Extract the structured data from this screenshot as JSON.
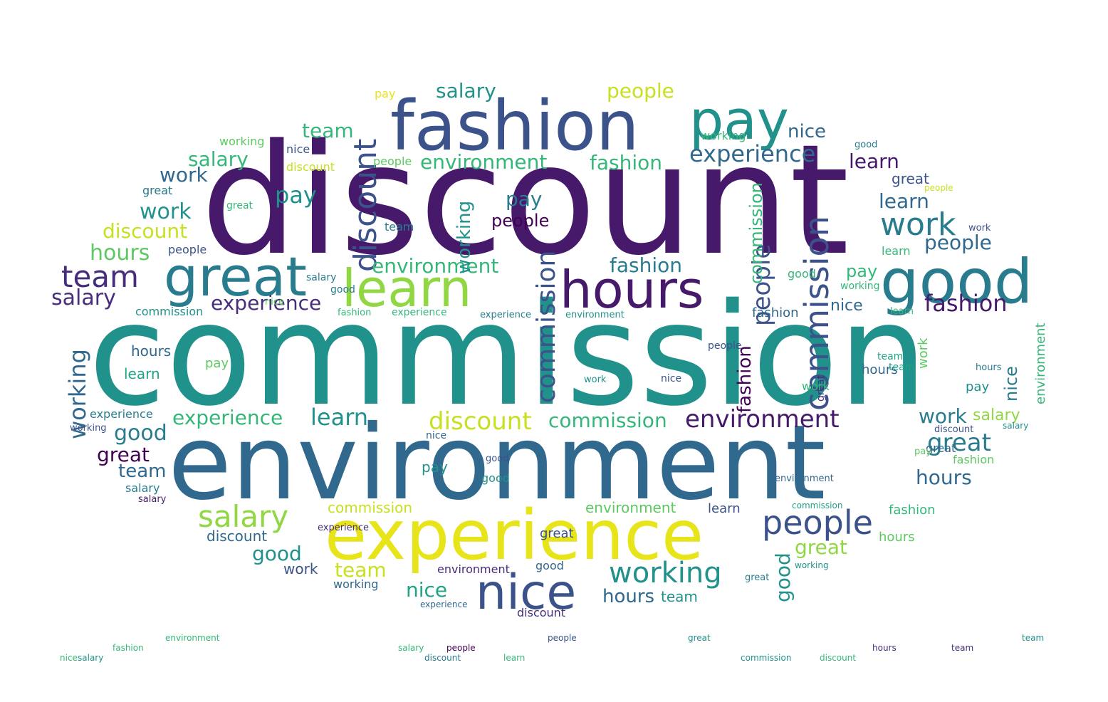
{
  "colors": {
    "background": "#ffffff",
    "palette": {
      "v1": "#440154",
      "v2": "#46196b",
      "v3": "#472d7b",
      "v4": "#3b528b",
      "v5": "#31688e",
      "v6": "#287c8e",
      "v7": "#21918c",
      "v8": "#20a486",
      "v9": "#35b779",
      "v10": "#5ec962",
      "v11": "#90d743",
      "v12": "#c8e020",
      "v13": "#e7e419"
    }
  },
  "words": [
    {
      "text": "discount",
      "color": "v2"
    },
    {
      "text": "commission",
      "color": "v7"
    },
    {
      "text": "environment",
      "color": "v5"
    },
    {
      "text": "experience",
      "color": "v13"
    },
    {
      "text": "fashion",
      "color": "v4"
    },
    {
      "text": "pay",
      "color": "v7"
    },
    {
      "text": "great",
      "color": "v6"
    },
    {
      "text": "learn",
      "color": "v11"
    },
    {
      "text": "hours",
      "color": "v2"
    },
    {
      "text": "good",
      "color": "v6"
    },
    {
      "text": "nice",
      "color": "v4"
    },
    {
      "text": "people",
      "color": "v4"
    },
    {
      "text": "working",
      "color": "v7"
    },
    {
      "text": "salary",
      "color": "v11"
    },
    {
      "text": "discount",
      "color": "v4"
    },
    {
      "text": "commission",
      "color": "v4"
    },
    {
      "text": "commission",
      "color": "v4"
    },
    {
      "text": "people",
      "color": "v4"
    },
    {
      "text": "team",
      "color": "v3"
    },
    {
      "text": "work",
      "color": "v6"
    },
    {
      "text": "fashion",
      "color": "v2"
    },
    {
      "text": "experience",
      "color": "v5"
    },
    {
      "text": "environment",
      "color": "v2"
    },
    {
      "text": "environment",
      "color": "v9"
    },
    {
      "text": "environment",
      "color": "v9"
    },
    {
      "text": "salary",
      "color": "v7"
    },
    {
      "text": "people",
      "color": "v12"
    },
    {
      "text": "fashion",
      "color": "v9"
    },
    {
      "text": "fashion",
      "color": "v6"
    },
    {
      "text": "team",
      "color": "v9"
    },
    {
      "text": "salary",
      "color": "v9"
    },
    {
      "text": "nice",
      "color": "v5"
    },
    {
      "text": "learn",
      "color": "v2"
    },
    {
      "text": "learn",
      "color": "v5"
    },
    {
      "text": "work",
      "color": "v7"
    },
    {
      "text": "people",
      "color": "v5"
    },
    {
      "text": "people",
      "color": "v1"
    },
    {
      "text": "pay",
      "color": "v7"
    },
    {
      "text": "pay",
      "color": "v6"
    },
    {
      "text": "pay",
      "color": "v9"
    },
    {
      "text": "work",
      "color": "v5"
    },
    {
      "text": "work",
      "color": "v6"
    },
    {
      "text": "hours",
      "color": "v10"
    },
    {
      "text": "discount",
      "color": "v12"
    },
    {
      "text": "salary",
      "color": "v3"
    },
    {
      "text": "experience",
      "color": "v3"
    },
    {
      "text": "experience",
      "color": "v9"
    },
    {
      "text": "environment",
      "color": "v9"
    },
    {
      "text": "discount",
      "color": "v12"
    },
    {
      "text": "commission",
      "color": "v9"
    },
    {
      "text": "learn",
      "color": "v7"
    },
    {
      "text": "good",
      "color": "v6"
    },
    {
      "text": "great",
      "color": "v1"
    },
    {
      "text": "great",
      "color": "v6"
    },
    {
      "text": "team",
      "color": "v5"
    },
    {
      "text": "salary",
      "color": "v11"
    },
    {
      "text": "hours",
      "color": "v5"
    },
    {
      "text": "people",
      "color": "v4"
    },
    {
      "text": "good",
      "color": "v7"
    },
    {
      "text": "team",
      "color": "v12"
    },
    {
      "text": "working",
      "color": "v5"
    },
    {
      "text": "nice",
      "color": "v8"
    },
    {
      "text": "nice",
      "color": "v5"
    },
    {
      "text": "great",
      "color": "v11"
    },
    {
      "text": "good",
      "color": "v7"
    },
    {
      "text": "fashion",
      "color": "v1"
    },
    {
      "text": "working",
      "color": "v7"
    },
    {
      "text": "commission",
      "color": "v9"
    },
    {
      "text": "commission",
      "color": "v12"
    },
    {
      "text": "environment",
      "color": "v10"
    },
    {
      "text": "discount",
      "color": "v5"
    },
    {
      "text": "hours",
      "color": "v5"
    },
    {
      "text": "hours",
      "color": "v5"
    },
    {
      "text": "great",
      "color": "v4"
    },
    {
      "text": "nice",
      "color": "v6"
    },
    {
      "text": "team",
      "color": "v7"
    },
    {
      "text": "work",
      "color": "v10"
    },
    {
      "text": "salary",
      "color": "v7"
    },
    {
      "text": "fashion",
      "color": "v9"
    },
    {
      "text": "learn",
      "color": "v4"
    },
    {
      "text": "hours",
      "color": "v5"
    },
    {
      "text": "environment",
      "color": "v3"
    },
    {
      "text": "discount",
      "color": "v3"
    },
    {
      "text": "good",
      "color": "v5"
    },
    {
      "text": "good",
      "color": "v7"
    },
    {
      "text": "working",
      "color": "v5"
    },
    {
      "text": "experience",
      "color": "v5"
    },
    {
      "text": "great",
      "color": "v3"
    },
    {
      "text": "pay",
      "color": "v7"
    },
    {
      "text": "pay",
      "color": "v7"
    },
    {
      "text": "work",
      "color": "v4"
    },
    {
      "text": "people",
      "color": "v1"
    },
    {
      "text": "salary",
      "color": "v6"
    },
    {
      "text": "salary",
      "color": "v7"
    },
    {
      "text": "team",
      "color": "v7"
    },
    {
      "text": "working",
      "color": "v7"
    },
    {
      "text": "discount",
      "color": "v12"
    },
    {
      "text": "nice",
      "color": "v4"
    },
    {
      "text": "great",
      "color": "v6"
    },
    {
      "text": "learn",
      "color": "v9"
    },
    {
      "text": "people",
      "color": "v4"
    },
    {
      "text": "experience",
      "color": "v9"
    },
    {
      "text": "experience",
      "color": "v6"
    },
    {
      "text": "commission",
      "color": "v7"
    },
    {
      "text": "good",
      "color": "v9"
    },
    {
      "text": "hours",
      "color": "v10"
    },
    {
      "text": "team",
      "color": "v8"
    },
    {
      "text": "working",
      "color": "v9"
    },
    {
      "text": "fashion",
      "color": "v10"
    },
    {
      "text": "great",
      "color": "v4"
    },
    {
      "text": "great",
      "color": "v9"
    },
    {
      "text": "discount",
      "color": "v4"
    },
    {
      "text": "work",
      "color": "v4"
    },
    {
      "text": "nice",
      "color": "v5"
    },
    {
      "text": "people",
      "color": "v4"
    },
    {
      "text": "salary",
      "color": "v2"
    },
    {
      "text": "learn",
      "color": "v8"
    },
    {
      "text": "team",
      "color": "v8"
    },
    {
      "text": "good",
      "color": "v6"
    },
    {
      "text": "pay",
      "color": "v10"
    },
    {
      "text": "nice",
      "color": "v4"
    },
    {
      "text": "working",
      "color": "v4"
    },
    {
      "text": "environment",
      "color": "v7"
    },
    {
      "text": "fashion",
      "color": "v5"
    },
    {
      "text": "great",
      "color": "v5"
    },
    {
      "text": "hours",
      "color": "v6"
    },
    {
      "text": "work",
      "color": "v9"
    },
    {
      "text": "salary",
      "color": "v9"
    },
    {
      "text": "discount",
      "color": "v6"
    },
    {
      "text": "people",
      "color": "v10"
    },
    {
      "text": "pay",
      "color": "v13"
    },
    {
      "text": "learn",
      "color": "v9"
    },
    {
      "text": "team",
      "color": "v6"
    },
    {
      "text": "commission",
      "color": "v8"
    },
    {
      "text": "experience",
      "color": "v6"
    },
    {
      "text": "good",
      "color": "v6"
    },
    {
      "text": "nice",
      "color": "v10"
    },
    {
      "text": "working",
      "color": "v10"
    },
    {
      "text": "great",
      "color": "v7"
    },
    {
      "text": "fashion",
      "color": "v9"
    },
    {
      "text": "commission",
      "color": "v7"
    },
    {
      "text": "environment",
      "color": "v5"
    },
    {
      "text": "experience",
      "color": "v3"
    },
    {
      "text": "discount",
      "color": "v9"
    },
    {
      "text": "salary",
      "color": "v6"
    },
    {
      "text": "hours",
      "color": "v3"
    },
    {
      "text": "pay",
      "color": "v10"
    },
    {
      "text": "work",
      "color": "v7"
    },
    {
      "text": "team",
      "color": "v3"
    },
    {
      "text": "good",
      "color": "v4"
    },
    {
      "text": "people",
      "color": "v12"
    },
    {
      "text": "great",
      "color": "v6"
    },
    {
      "text": "nice",
      "color": "v9"
    },
    {
      "text": "learn",
      "color": "v9"
    },
    {
      "text": "fashion",
      "color": "v9"
    },
    {
      "text": "working",
      "color": "v9"
    },
    {
      "text": "environment",
      "color": "v9"
    }
  ]
}
